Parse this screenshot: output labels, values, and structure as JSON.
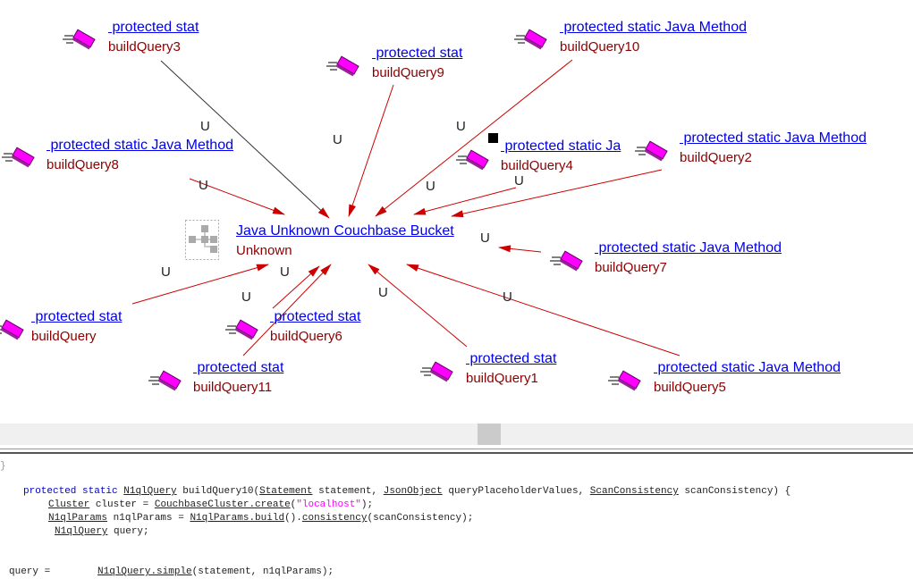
{
  "diagram": {
    "center": {
      "title": "Java Unknown Couchbase Bucket",
      "subtitle": "Unknown",
      "icon": "hierarchy-icon"
    },
    "edge_label": "U",
    "nodes": [
      {
        "id": "q3",
        "title": " protected stat",
        "name": "buildQuery3"
      },
      {
        "id": "q9",
        "title": " protected stat",
        "name": "buildQuery9"
      },
      {
        "id": "q10",
        "title": " protected static Java Method",
        "name": "buildQuery10"
      },
      {
        "id": "q8",
        "title": " protected static Java Method",
        "name": "buildQuery8"
      },
      {
        "id": "q4",
        "title": " protected static Ja",
        "name": "buildQuery4"
      },
      {
        "id": "q2",
        "title": " protected static Java Method",
        "name": "buildQuery2"
      },
      {
        "id": "q7",
        "title": " protected static Java Method",
        "name": "buildQuery7"
      },
      {
        "id": "q",
        "title": " protected stat",
        "name": "buildQuery"
      },
      {
        "id": "q6",
        "title": " protected stat",
        "name": "buildQuery6"
      },
      {
        "id": "q11",
        "title": " protected stat",
        "name": "buildQuery11"
      },
      {
        "id": "q1",
        "title": " protected stat",
        "name": "buildQuery1"
      },
      {
        "id": "q5",
        "title": " protected static Java Method",
        "name": "buildQuery5"
      }
    ],
    "colors": {
      "link": "#0000ee",
      "name": "#8b0000",
      "edge": "#cc0000",
      "method_icon": "#ff00ff"
    }
  },
  "code": {
    "brace": "}",
    "l1": {
      "kw1": "protected",
      "kw2": "static",
      "t1": "N1qlQuery",
      "m": " buildQuery10(",
      "t2": "Statement",
      "a1": " statement, ",
      "t3": "JsonObject",
      "a2": " queryPlaceholderValues, ",
      "t4": "ScanConsistency",
      "a3": " scanConsistency) {"
    },
    "l2": {
      "t1": "Cluster",
      "a1": " cluster = ",
      "t2": "CouchbaseCluster.create",
      "a2": "(",
      "s": "\"localhost\"",
      "a3": ");"
    },
    "l3": {
      "t1": "N1qlParams",
      "a1": " n1qlParams = ",
      "t2": "N1qlParams.build",
      "a2": "().",
      "t3": "consistency",
      "a3": "(scanConsistency);"
    },
    "l4": {
      "t1": "N1qlQuery",
      "a1": " query;"
    },
    "l5": {
      "a0": "query =        ",
      "t1": "N1qlQuery.simple",
      "a1": "(statement, n1qlParams);"
    }
  }
}
